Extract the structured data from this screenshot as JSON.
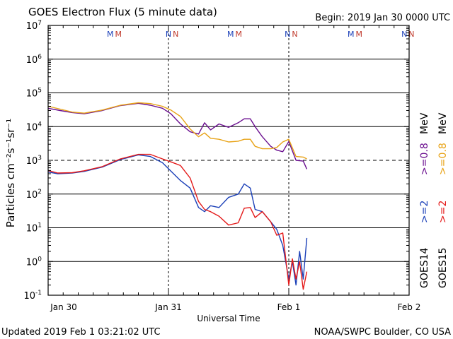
{
  "header": {
    "title": "GOES Electron Flux (5 minute data)",
    "begin": "Begin: 2019 Jan 30 0000 UTC"
  },
  "footer": {
    "updated": "Updated 2019 Feb  1 03:21:02 UTC",
    "credit": "NOAA/SWPC Boulder, CO USA"
  },
  "colors": {
    "goes14_2mev": "#1a3fb8",
    "goes15_2mev": "#e41a1a",
    "goes14_08mev": "#6a0e8f",
    "goes15_08mev": "#e8a317",
    "marker_m": "#c0392b",
    "marker_n_blue": "#1a3fb8"
  },
  "markers": [
    {
      "day": 0.55,
      "labels": [
        {
          "t": "M",
          "c": "#1a3fb8"
        },
        {
          "t": "M",
          "c": "#c0392b"
        }
      ]
    },
    {
      "day": 1.03,
      "labels": [
        {
          "t": "N",
          "c": "#1a3fb8"
        },
        {
          "t": "N",
          "c": "#c0392b"
        }
      ]
    },
    {
      "day": 1.55,
      "labels": [
        {
          "t": "M",
          "c": "#1a3fb8"
        },
        {
          "t": "M",
          "c": "#c0392b"
        }
      ]
    },
    {
      "day": 2.02,
      "labels": [
        {
          "t": "N",
          "c": "#1a3fb8"
        },
        {
          "t": "N",
          "c": "#c0392b"
        }
      ]
    },
    {
      "day": 2.55,
      "labels": [
        {
          "t": "M",
          "c": "#1a3fb8"
        },
        {
          "t": "M",
          "c": "#c0392b"
        }
      ]
    },
    {
      "day": 2.99,
      "labels": [
        {
          "t": "N",
          "c": "#1a3fb8"
        },
        {
          "t": "N",
          "c": "#c0392b"
        }
      ]
    }
  ],
  "chart_data": {
    "type": "line",
    "title": "GOES Electron Flux (5 minute data)",
    "xlabel": "Universal Time",
    "ylabel": "Particles cm⁻²s⁻¹sr⁻¹",
    "xlim": [
      0,
      3
    ],
    "ylim_log10": [
      -1,
      7
    ],
    "y_scale": "log",
    "grid": true,
    "x_ticks": [
      {
        "value": 0,
        "label": "Jan 30"
      },
      {
        "value": 1,
        "label": "Jan 31"
      },
      {
        "value": 2,
        "label": "Feb 1"
      },
      {
        "value": 3,
        "label": "Feb 2"
      }
    ],
    "y_ticks": [
      {
        "exp": -1,
        "label": "10",
        "sup": "-1"
      },
      {
        "exp": 0,
        "label": "10",
        "sup": "0"
      },
      {
        "exp": 1,
        "label": "10",
        "sup": "1"
      },
      {
        "exp": 2,
        "label": "10",
        "sup": "2"
      },
      {
        "exp": 3,
        "label": "10",
        "sup": "3"
      },
      {
        "exp": 4,
        "label": "10",
        "sup": "4"
      },
      {
        "exp": 5,
        "label": "10",
        "sup": "5"
      },
      {
        "exp": 6,
        "label": "10",
        "sup": "6"
      },
      {
        "exp": 7,
        "label": "10",
        "sup": "7"
      }
    ],
    "threshold_log10": 3,
    "legend": {
      "placement": "right",
      "goes15_label": "GOES15",
      "goes14_label": "GOES14",
      "goes15_2mev": ">=2",
      "goes14_2mev": ">=2",
      "goes15_08mev": ">=0.8",
      "goes14_08mev": ">=0.8",
      "unit": "MeV"
    },
    "series": [
      {
        "name": "GOES14 >=0.8 MeV",
        "color": "#6a0e8f",
        "x": [
          0,
          0.1,
          0.2,
          0.3,
          0.45,
          0.6,
          0.75,
          0.85,
          0.95,
          1.02,
          1.1,
          1.18,
          1.25,
          1.3,
          1.35,
          1.42,
          1.5,
          1.58,
          1.63,
          1.68,
          1.72,
          1.78,
          1.85,
          1.9,
          1.95,
          2.0,
          2.06,
          2.12,
          2.15
        ],
        "y": [
          35000,
          30000,
          26000,
          24000,
          30000,
          42000,
          49000,
          43000,
          35000,
          24000,
          12000,
          7000,
          6000,
          13000,
          8000,
          12000,
          9500,
          13000,
          17000,
          17000,
          10000,
          5000,
          2600,
          2000,
          1800,
          3600,
          1000,
          950,
          550
        ]
      },
      {
        "name": "GOES15 >=0.8 MeV",
        "color": "#e8a317",
        "x": [
          0,
          0.1,
          0.2,
          0.3,
          0.45,
          0.6,
          0.75,
          0.85,
          0.95,
          1.02,
          1.1,
          1.18,
          1.25,
          1.3,
          1.35,
          1.42,
          1.5,
          1.58,
          1.63,
          1.68,
          1.72,
          1.78,
          1.85,
          1.9,
          1.95,
          2.0,
          2.06,
          2.12,
          2.15
        ],
        "y": [
          40000,
          33000,
          27000,
          25000,
          31000,
          43000,
          51000,
          48000,
          40000,
          31000,
          20000,
          8500,
          5000,
          6500,
          4500,
          4200,
          3500,
          3700,
          4200,
          4200,
          2600,
          2200,
          2200,
          2400,
          3500,
          4200,
          1300,
          1250,
          1100
        ]
      },
      {
        "name": "GOES14 >=2 MeV",
        "color": "#1a3fb8",
        "x": [
          0,
          0.08,
          0.2,
          0.3,
          0.45,
          0.6,
          0.75,
          0.85,
          0.95,
          1.02,
          1.1,
          1.18,
          1.25,
          1.3,
          1.35,
          1.42,
          1.5,
          1.58,
          1.63,
          1.68,
          1.72,
          1.78,
          1.85,
          1.9,
          1.95,
          2.0,
          2.03,
          2.06,
          2.09,
          2.12,
          2.15
        ],
        "y": [
          450,
          400,
          420,
          470,
          630,
          1050,
          1450,
          1300,
          850,
          480,
          250,
          150,
          40,
          30,
          45,
          40,
          80,
          100,
          200,
          150,
          35,
          30,
          15,
          9,
          3,
          0.3,
          1.0,
          0.2,
          2.0,
          0.3,
          5.0
        ]
      },
      {
        "name": "GOES15 >=2 MeV",
        "color": "#e41a1a",
        "x": [
          0,
          0.08,
          0.2,
          0.3,
          0.45,
          0.6,
          0.75,
          0.85,
          0.95,
          1.02,
          1.1,
          1.18,
          1.25,
          1.3,
          1.35,
          1.42,
          1.5,
          1.58,
          1.63,
          1.68,
          1.72,
          1.78,
          1.85,
          1.9,
          1.95,
          2.0,
          2.03,
          2.06,
          2.09,
          2.12,
          2.15
        ],
        "y": [
          500,
          420,
          430,
          490,
          650,
          1100,
          1500,
          1500,
          1100,
          900,
          700,
          300,
          60,
          35,
          30,
          22,
          12,
          14,
          38,
          40,
          20,
          30,
          15,
          6,
          7,
          0.2,
          1.2,
          0.3,
          1.0,
          0.15,
          0.5
        ]
      }
    ]
  }
}
